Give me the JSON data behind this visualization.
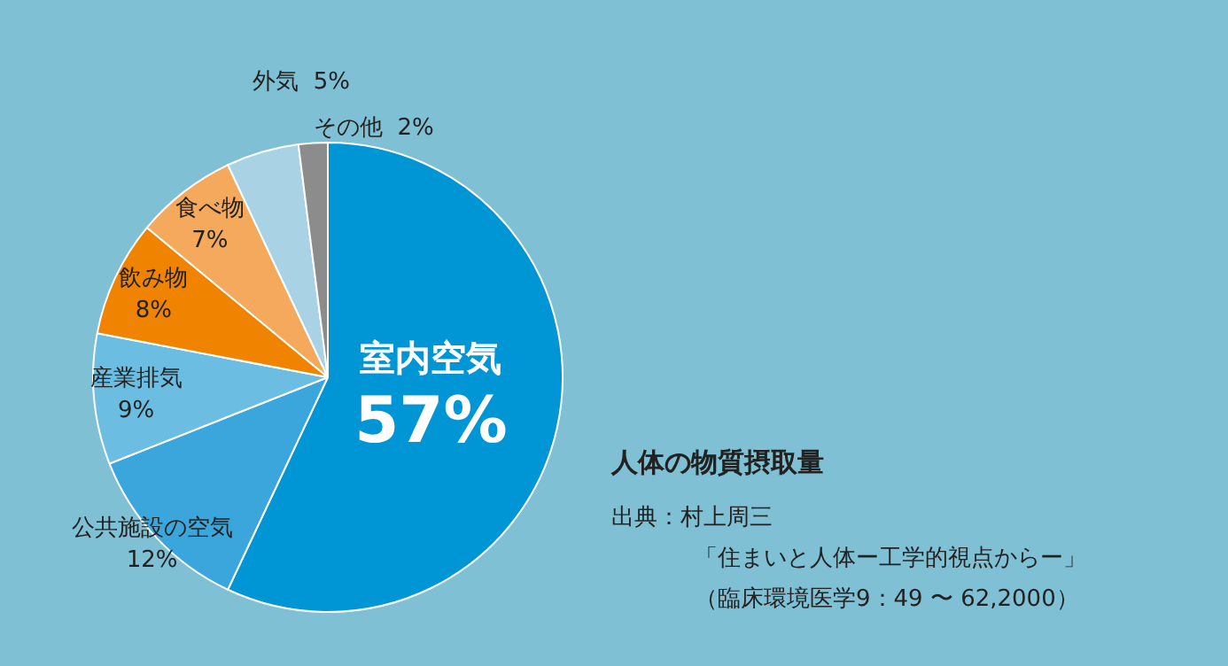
{
  "chart_data": {
    "type": "pie",
    "title": "人体の物質摂取量",
    "categories": [
      "室内空気",
      "公共施設の空気",
      "産業排気",
      "飲み物",
      "食べ物",
      "外気",
      "その他"
    ],
    "values": [
      57,
      12,
      9,
      8,
      7,
      5,
      2
    ],
    "value_labels": [
      "57%",
      "12%",
      "9%",
      "8%",
      "7%",
      "5%",
      "2%"
    ],
    "colors": [
      "#0096d6",
      "#3aa6db",
      "#6cbde2",
      "#f08300",
      "#f4a95c",
      "#a9d3e4",
      "#8c8c8c"
    ],
    "legend": false,
    "annotations": [
      "出典：村上周三",
      "「住まいと人体ー工学的視点からー」",
      "（臨床環境医学9：49 〜 62,2000）"
    ]
  }
}
